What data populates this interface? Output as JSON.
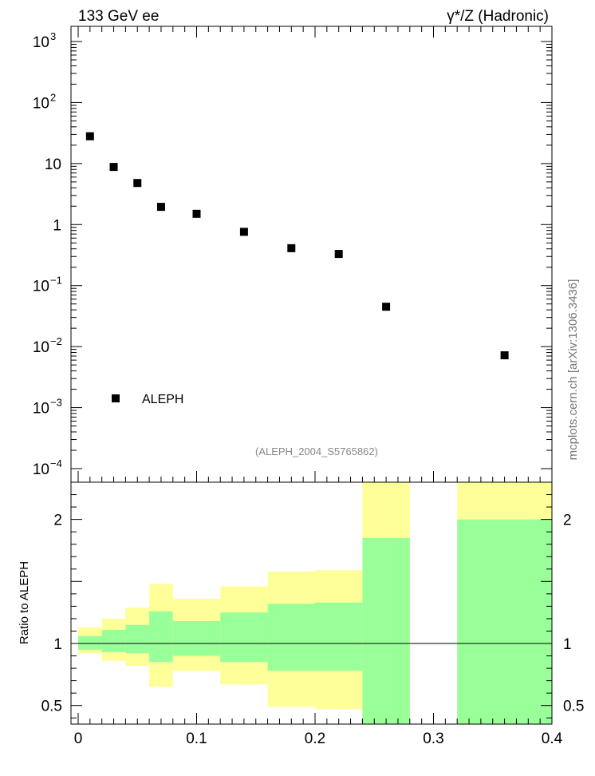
{
  "header": {
    "left": "133 GeV ee",
    "right": "γ*/Z (Hadronic)"
  },
  "side_label": "mcplots.cern.ch [arXiv:1306.3436]",
  "watermark": "(ALEPH_2004_S5765862)",
  "colors": {
    "marker": "#000000",
    "band_inner": "#99ff99",
    "band_outer": "#ffff99",
    "watermark": "#888888",
    "side_label": "#777777"
  },
  "chart_data": [
    {
      "type": "scatter",
      "log_y": true,
      "xlim": [
        0,
        0.4
      ],
      "ylim": [
        0.0001,
        1000
      ],
      "y_ticks": [
        {
          "value": 1000,
          "base": "10",
          "exp": "3"
        },
        {
          "value": 100,
          "base": "10",
          "exp": "2"
        },
        {
          "value": 10,
          "base": "10",
          "exp": ""
        },
        {
          "value": 1,
          "base": "1",
          "exp": ""
        },
        {
          "value": 0.1,
          "base": "10",
          "exp": "−1"
        },
        {
          "value": 0.01,
          "base": "10",
          "exp": "−2"
        },
        {
          "value": 0.001,
          "base": "10",
          "exp": "−3"
        },
        {
          "value": 0.0001,
          "base": "10",
          "exp": "−4"
        }
      ],
      "legend": {
        "label": "ALEPH",
        "position": "bottom-left"
      },
      "series": [
        {
          "name": "ALEPH",
          "x": [
            0.01,
            0.03,
            0.05,
            0.07,
            0.1,
            0.14,
            0.18,
            0.22,
            0.26,
            0.36
          ],
          "y": [
            28,
            8.8,
            4.8,
            1.95,
            1.5,
            0.76,
            0.41,
            0.33,
            0.045,
            0.0072
          ]
        }
      ]
    },
    {
      "type": "area",
      "ylabel": "Ratio to ALEPH",
      "xlim": [
        0,
        0.4
      ],
      "ylim": [
        0.35,
        2.3
      ],
      "x_ticks": [
        {
          "value": 0,
          "label": "0"
        },
        {
          "value": 0.1,
          "label": "0.1"
        },
        {
          "value": 0.2,
          "label": "0.2"
        },
        {
          "value": 0.3,
          "label": "0.3"
        },
        {
          "value": 0.4,
          "label": "0.4"
        }
      ],
      "y_ticks": [
        {
          "value": 0.5,
          "label": "0.5"
        },
        {
          "value": 1,
          "label": "1"
        },
        {
          "value": 2,
          "label": "2"
        }
      ],
      "reference_line": 1,
      "bins": [
        {
          "x0": 0.0,
          "x1": 0.02,
          "inner": [
            0.95,
            1.06
          ],
          "outer": [
            0.92,
            1.13
          ]
        },
        {
          "x0": 0.02,
          "x1": 0.04,
          "inner": [
            0.93,
            1.11
          ],
          "outer": [
            0.86,
            1.2
          ]
        },
        {
          "x0": 0.04,
          "x1": 0.06,
          "inner": [
            0.92,
            1.15
          ],
          "outer": [
            0.82,
            1.29
          ]
        },
        {
          "x0": 0.06,
          "x1": 0.08,
          "inner": [
            0.85,
            1.26
          ],
          "outer": [
            0.65,
            1.48
          ]
        },
        {
          "x0": 0.08,
          "x1": 0.12,
          "inner": [
            0.9,
            1.18
          ],
          "outer": [
            0.78,
            1.36
          ]
        },
        {
          "x0": 0.12,
          "x1": 0.16,
          "inner": [
            0.85,
            1.25
          ],
          "outer": [
            0.67,
            1.46
          ]
        },
        {
          "x0": 0.16,
          "x1": 0.2,
          "inner": [
            0.78,
            1.32
          ],
          "outer": [
            0.49,
            1.58
          ]
        },
        {
          "x0": 0.2,
          "x1": 0.24,
          "inner": [
            0.78,
            1.33
          ],
          "outer": [
            0.47,
            1.59
          ]
        },
        {
          "x0": 0.24,
          "x1": 0.28,
          "inner": [
            0.35,
            1.85
          ],
          "outer": [
            0.35,
            2.3
          ]
        },
        {
          "x0": 0.32,
          "x1": 0.4,
          "inner": [
            0.35,
            2.0
          ],
          "outer": [
            0.35,
            2.3
          ]
        }
      ]
    }
  ]
}
